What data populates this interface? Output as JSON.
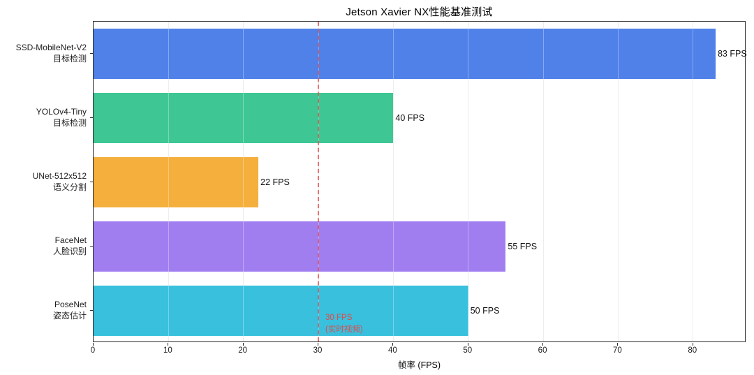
{
  "chart_data": {
    "type": "bar",
    "orientation": "horizontal",
    "title": "Jetson Xavier NX性能基准测试",
    "xlabel": "帧率 (FPS)",
    "xlim": [
      0,
      87.1
    ],
    "xticks": [
      0,
      10,
      20,
      30,
      40,
      50,
      60,
      70,
      80
    ],
    "grid": "vertical-light",
    "categories": [
      {
        "name": "SSD-MobileNet-V2",
        "task": "目标检测"
      },
      {
        "name": "YOLOv4-Tiny",
        "task": "目标检测"
      },
      {
        "name": "UNet-512x512",
        "task": "语义分割"
      },
      {
        "name": "FaceNet",
        "task": "人脸识别"
      },
      {
        "name": "PoseNet",
        "task": "姿态估计"
      }
    ],
    "values": [
      83,
      40,
      22,
      55,
      50
    ],
    "value_labels": [
      "83 FPS",
      "40 FPS",
      "22 FPS",
      "55 FPS",
      "50 FPS"
    ],
    "bar_colors": [
      "#5081E8",
      "#3EC794",
      "#F5AF3D",
      "#A17EF0",
      "#39C0DD"
    ],
    "reference_line": {
      "x": 30,
      "style": "dashed",
      "color": "#E04A4A",
      "label_line1": "30 FPS",
      "label_line2": "(实时视频)"
    }
  }
}
